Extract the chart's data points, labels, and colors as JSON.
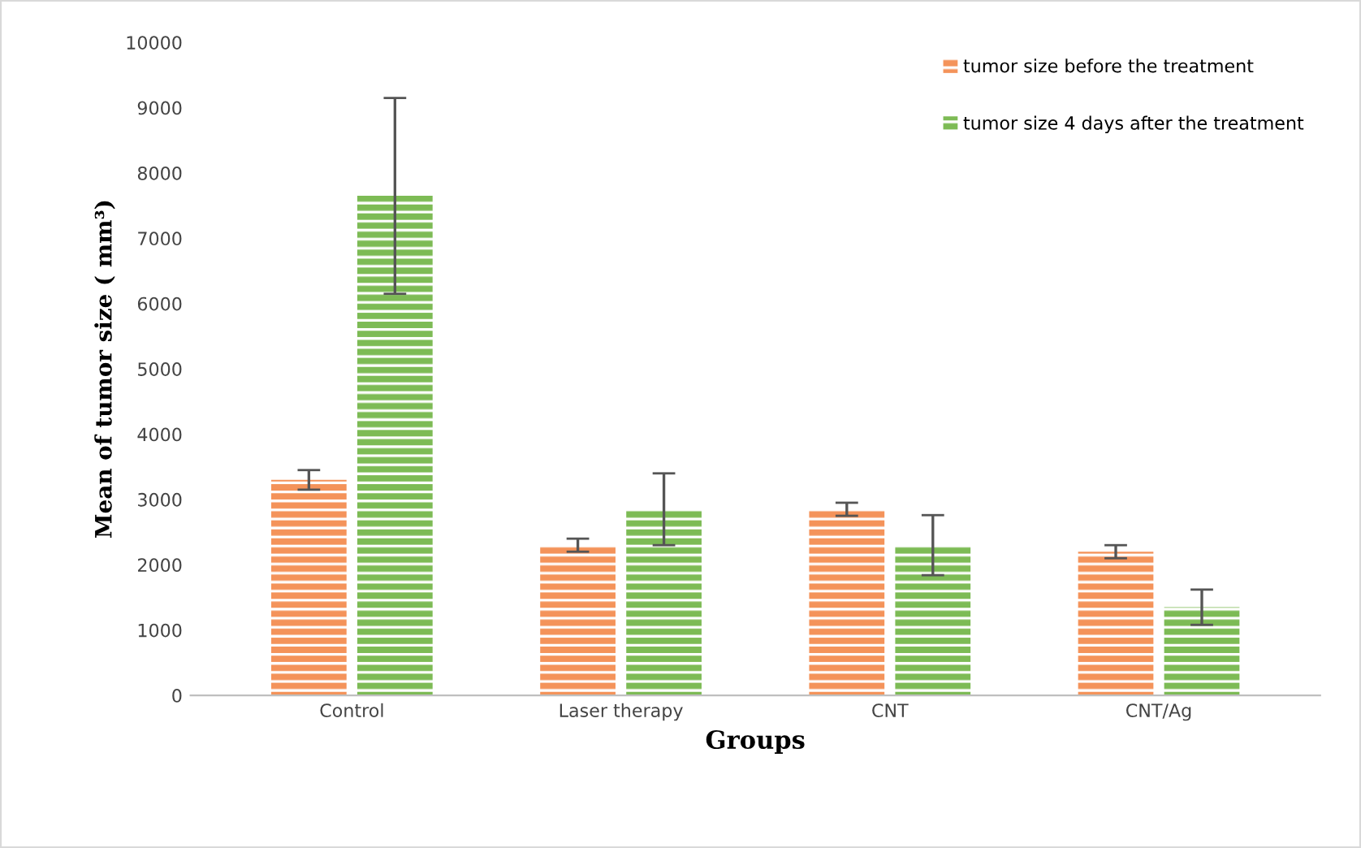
{
  "chart_data": {
    "type": "bar",
    "xlabel": "Groups",
    "ylabel": "Mean of tumor size ( mm³)",
    "categories": [
      "Control",
      "Laser therapy",
      "CNT",
      "CNT/Ag"
    ],
    "series": [
      {
        "name": "tumor size before the treatment",
        "color": "#f4935a",
        "values": [
          3300,
          2300,
          2850,
          2200
        ],
        "errors": [
          150,
          100,
          100,
          100
        ]
      },
      {
        "name": "tumor size 4 days after the treatment",
        "color": "#7dbb55",
        "values": [
          7650,
          2850,
          2300,
          1350
        ],
        "errors": [
          1500,
          550,
          460,
          270
        ]
      }
    ],
    "ylim": [
      0,
      10000
    ],
    "yticks": [
      0,
      1000,
      2000,
      3000,
      4000,
      5000,
      6000,
      7000,
      8000,
      9000,
      10000
    ],
    "grid": false,
    "legend": "top right"
  }
}
